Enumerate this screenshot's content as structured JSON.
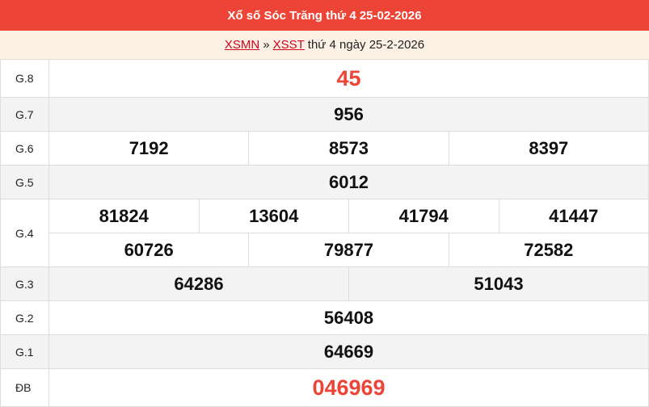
{
  "header": {
    "title": "Xổ số Sóc Trăng thứ 4 25-02-2026"
  },
  "breadcrumb": {
    "link1": "XSMN",
    "separator": "»",
    "link2": "XSST",
    "text": "thứ 4 ngày 25-2-2026"
  },
  "colors": {
    "header_bg": "#ec4436",
    "highlight": "#ec4436",
    "subheader_bg": "#fdf1e6"
  },
  "prizes": [
    {
      "label": "G.8",
      "rows": [
        [
          "45"
        ]
      ]
    },
    {
      "label": "G.7",
      "rows": [
        [
          "956"
        ]
      ]
    },
    {
      "label": "G.6",
      "rows": [
        [
          "7192",
          "8573",
          "8397"
        ]
      ]
    },
    {
      "label": "G.5",
      "rows": [
        [
          "6012"
        ]
      ]
    },
    {
      "label": "G.4",
      "rows": [
        [
          "81824",
          "13604",
          "41794",
          "41447"
        ],
        [
          "60726",
          "79877",
          "72582"
        ]
      ]
    },
    {
      "label": "G.3",
      "rows": [
        [
          "64286",
          "51043"
        ]
      ]
    },
    {
      "label": "G.2",
      "rows": [
        [
          "56408"
        ]
      ]
    },
    {
      "label": "G.1",
      "rows": [
        [
          "64669"
        ]
      ]
    },
    {
      "label": "ĐB",
      "rows": [
        [
          "046969"
        ]
      ]
    }
  ]
}
